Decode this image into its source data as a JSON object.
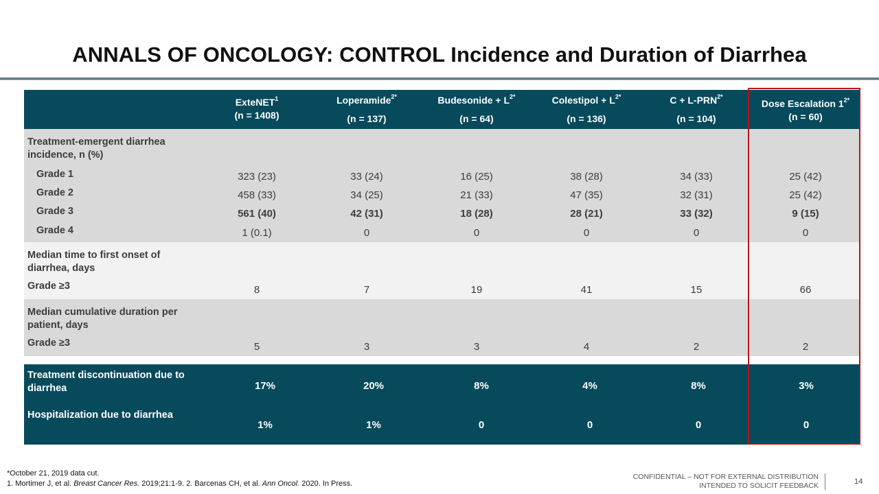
{
  "title": "ANNALS OF ONCOLOGY: CONTROL Incidence and Duration of Diarrhea",
  "columns": [
    {
      "name": "ExteNET",
      "sup": "1",
      "n": "(n = 1408)"
    },
    {
      "name": "Loperamide",
      "sup": "2*",
      "n": "(n = 137)"
    },
    {
      "name": "Budesonide + L",
      "sup": "2*",
      "n": "(n = 64)"
    },
    {
      "name": "Colestipol + L",
      "sup": "2*",
      "n": "(n = 136)"
    },
    {
      "name": "C + L-PRN",
      "sup": "2*",
      "n": "(n = 104)"
    },
    {
      "name": "Dose Escalation 1",
      "sup": "2*",
      "n": "(n = 60)"
    }
  ],
  "section1": {
    "label": "Treatment-emergent diarrhea incidence, n (%)",
    "rows": [
      {
        "label": "Grade 1",
        "values": [
          "323 (23)",
          "33 (24)",
          "16 (25)",
          "38 (28)",
          "34 (33)",
          "25 (42)"
        ]
      },
      {
        "label": "Grade 2",
        "values": [
          "458 (33)",
          "34 (25)",
          "21 (33)",
          "47 (35)",
          "32 (31)",
          "25 (42)"
        ]
      },
      {
        "label": "Grade 3",
        "values": [
          "561 (40)",
          "42 (31)",
          "18 (28)",
          "28 (21)",
          "33 (32)",
          "9 (15)"
        ]
      },
      {
        "label": "Grade 4",
        "values": [
          "1 (0.1)",
          "0",
          "0",
          "0",
          "0",
          "0"
        ]
      }
    ]
  },
  "section2": {
    "label": "Median time to first onset of diarrhea, days",
    "row": {
      "label": "Grade ≥3",
      "values": [
        "8",
        "7",
        "19",
        "41",
        "15",
        "66"
      ]
    }
  },
  "section3": {
    "label": "Median cumulative duration per patient, days",
    "row": {
      "label": "Grade ≥3",
      "values": [
        "5",
        "3",
        "3",
        "4",
        "2",
        "2"
      ]
    }
  },
  "section4": {
    "rows": [
      {
        "label": "Treatment discontinuation due to diarrhea",
        "values": [
          "17%",
          "20%",
          "8%",
          "4%",
          "8%",
          "3%"
        ]
      },
      {
        "label": "Hospitalization due to diarrhea",
        "values": [
          "1%",
          "1%",
          "0",
          "0",
          "0",
          "0"
        ]
      }
    ]
  },
  "footnotes": {
    "line1": "*October 21, 2019 data cut.",
    "line2_a": "1. Mortimer J, et al. ",
    "line2_b": "Breast Cancer Res.",
    "line2_c": " 2019;21:1-9. 2. Barcenas CH, et al. ",
    "line2_d": "Ann Oncol.",
    "line2_e": " 2020. In Press."
  },
  "confidential": {
    "line1": "CONFIDENTIAL – NOT FOR EXTERNAL DISTRIBUTION",
    "line2": "INTENDED TO SOLICIT FEEDBACK"
  },
  "page_number": "14",
  "colors": {
    "header_teal": "#074a5c",
    "band_gray": "#d9d9d9",
    "band_light": "#f2f2f2",
    "highlight_red": "#b3161c"
  }
}
